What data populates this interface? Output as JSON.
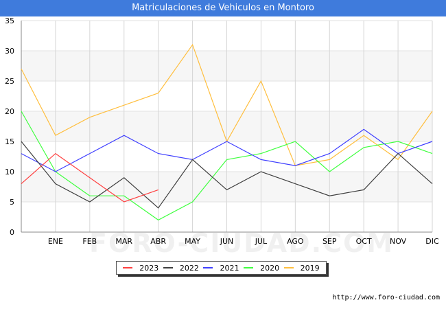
{
  "watermark": "FORO-CIUDAD.COM",
  "source_url": "http://www.foro-ciudad.com",
  "chart_data": {
    "type": "line",
    "title": "Matriculaciones de Vehiculos en Montoro",
    "xlabel": "",
    "ylabel": "",
    "categories": [
      "",
      "ENE",
      "FEB",
      "MAR",
      "ABR",
      "MAY",
      "JUN",
      "JUL",
      "AGO",
      "SEP",
      "OCT",
      "NOV",
      "DIC"
    ],
    "y_ticks": [
      0,
      5,
      10,
      15,
      20,
      25,
      30,
      35
    ],
    "ylim": [
      0,
      35
    ],
    "grid": true,
    "legend_position": "bottom-center",
    "series": [
      {
        "name": "2023",
        "color": "#ff3f3f",
        "values": [
          8,
          13,
          9,
          5,
          7,
          null,
          null,
          null,
          null,
          null,
          null,
          null,
          null
        ]
      },
      {
        "name": "2022",
        "color": "#3f3f3f",
        "values": [
          15,
          8,
          5,
          9,
          4,
          12,
          7,
          10,
          8,
          6,
          7,
          13,
          8
        ]
      },
      {
        "name": "2021",
        "color": "#3f3fff",
        "values": [
          13,
          10,
          13,
          16,
          13,
          12,
          15,
          12,
          11,
          13,
          17,
          13,
          15
        ]
      },
      {
        "name": "2020",
        "color": "#3fff3f",
        "values": [
          20,
          10,
          6,
          6,
          2,
          5,
          12,
          13,
          15,
          10,
          14,
          15,
          13
        ]
      },
      {
        "name": "2019",
        "color": "#ffbf3f",
        "values": [
          27,
          16,
          19,
          21,
          23,
          31,
          15,
          25,
          11,
          12,
          16,
          12,
          20
        ]
      }
    ]
  }
}
